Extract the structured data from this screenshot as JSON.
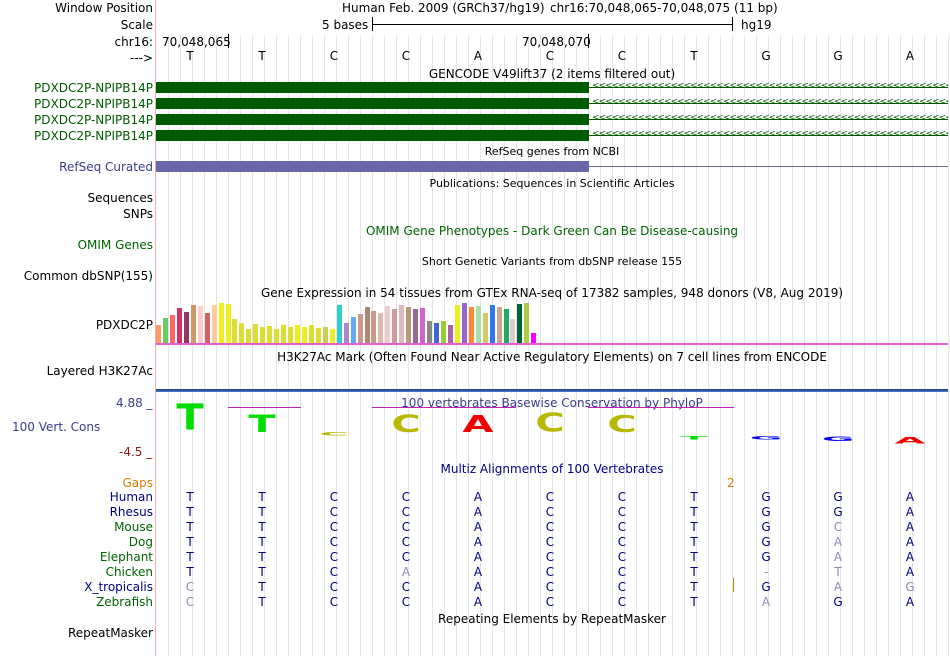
{
  "header": {
    "window_position_label": "Window Position",
    "scale_label": "Scale",
    "chrom_label": "chr16:",
    "strand_label": "--->",
    "assembly_text": "Human Feb. 2009 (GRCh37/hg19)",
    "position_text": "chr16:70,048,065-70,048,075 (11 bp)",
    "scale_text": "5 bases",
    "db_text": "hg19",
    "coord_left": "70,048,065",
    "coord_mid": "70,048,070"
  },
  "reference_bases": [
    "T",
    "T",
    "C",
    "C",
    "A",
    "C",
    "C",
    "T",
    "G",
    "G",
    "A"
  ],
  "tracks": {
    "gencode": {
      "title": "GENCODE V49lift37 (2 items filtered out)",
      "items": [
        "PDXDC2P-NPIPB14P",
        "PDXDC2P-NPIPB14P",
        "PDXDC2P-NPIPB14P",
        "PDXDC2P-NPIPB14P"
      ],
      "color": "#005a00"
    },
    "refseq": {
      "title": "RefSeq genes from NCBI",
      "label": "RefSeq Curated",
      "color": "#6868a8"
    },
    "publications": {
      "title": "Publications: Sequences in Scientific Articles",
      "label1": "Sequences",
      "label2": "SNPs"
    },
    "omim": {
      "title": "OMIM Gene Phenotypes - Dark Green Can Be Disease-causing",
      "label": "OMIM Genes",
      "color": "#006400"
    },
    "dbsnp": {
      "title": "Short Genetic Variants from dbSNP release 155",
      "label": "Common dbSNP(155)"
    },
    "gtex": {
      "title": "Gene Expression in 54 tissues from GTEx RNA-seq of 17382 samples, 948 donors (V8, Aug 2019)",
      "label": "PDXDC2P",
      "values": [
        0.45,
        0.62,
        0.7,
        0.88,
        0.78,
        0.95,
        0.92,
        0.75,
        0.95,
        1.0,
        0.98,
        0.6,
        0.5,
        0.35,
        0.48,
        0.4,
        0.42,
        0.35,
        0.45,
        0.4,
        0.45,
        0.4,
        0.45,
        0.38,
        0.4,
        0.35,
        0.95,
        0.5,
        0.65,
        0.72,
        0.9,
        0.8,
        0.75,
        0.92,
        0.85,
        0.95,
        0.9,
        0.85,
        0.88,
        0.55,
        0.5,
        0.55,
        0.45,
        0.95,
        1.0,
        0.9,
        0.92,
        0.75,
        0.95,
        0.9,
        0.85,
        0.6,
        0.98,
        1.0,
        0.25
      ],
      "colors": [
        "#ff9966",
        "#66cc66",
        "#ff6666",
        "#cc3366",
        "#993366",
        "#cc9966",
        "#ffcccc",
        "#cc6666",
        "#ffcc99",
        "#eeee22",
        "#eeee22",
        "#dddd33",
        "#dddd33",
        "#dddd33",
        "#dddd33",
        "#dddd33",
        "#dddd33",
        "#dddd33",
        "#dddd33",
        "#dddd33",
        "#eeee22",
        "#eeee22",
        "#dddd33",
        "#dddd33",
        "#cccc55",
        "#eeee22",
        "#33cccc",
        "#aa88cc",
        "#66aaee",
        "#cc9988",
        "#aa8877",
        "#cc9988",
        "#ddbbaa",
        "#eecccc",
        "#cc9999",
        "#ddbbbb",
        "#bb9977",
        "#996699",
        "#cc66cc",
        "#888888",
        "#4466cc",
        "#99cc33",
        "#aa66aa",
        "#eeee22",
        "#9966cc",
        "#ff8833",
        "#aaddaa",
        "#cccc66",
        "#3377ee",
        "#ccaa88",
        "#22aa66",
        "#ddcccc",
        "#006633",
        "#aacc44",
        "#ff00ff"
      ]
    },
    "h3k27ac": {
      "title": "H3K27Ac Mark (Often Found Near Active Regulatory Elements) on 7 cell lines from ENCODE",
      "label": "Layered H3K27Ac"
    },
    "phylop": {
      "title": "100 vertebrates Basewise Conservation by PhyloP",
      "label": "100 Vert. Cons",
      "max_label": "4.88 _",
      "min_label": "-4.5 _",
      "scores": [
        3.6,
        2.4,
        0.4,
        2.4,
        2.3,
        2.6,
        2.3,
        -0.4,
        -0.15,
        -0.6,
        -0.9
      ]
    },
    "multiz": {
      "title": "Multiz Alignments of 100 Vertebrates",
      "gaps_label": "Gaps",
      "gap_value": "2",
      "species": [
        {
          "name": "Human",
          "color": "#000080",
          "bases": [
            "T",
            "T",
            "C",
            "C",
            "A",
            "C",
            "C",
            "T",
            "G",
            "G",
            "A"
          ],
          "dim": [
            false,
            false,
            false,
            false,
            false,
            false,
            false,
            false,
            false,
            false,
            false
          ]
        },
        {
          "name": "Rhesus",
          "color": "#000080",
          "bases": [
            "T",
            "T",
            "C",
            "C",
            "A",
            "C",
            "C",
            "T",
            "G",
            "G",
            "A"
          ],
          "dim": [
            false,
            false,
            false,
            false,
            false,
            false,
            false,
            false,
            false,
            false,
            false
          ]
        },
        {
          "name": "Mouse",
          "color": "#006400",
          "bases": [
            "T",
            "T",
            "C",
            "C",
            "A",
            "C",
            "C",
            "T",
            "G",
            "C",
            "A"
          ],
          "dim": [
            false,
            false,
            false,
            false,
            false,
            false,
            false,
            false,
            false,
            true,
            false
          ]
        },
        {
          "name": "Dog",
          "color": "#006400",
          "bases": [
            "T",
            "T",
            "C",
            "C",
            "A",
            "C",
            "C",
            "T",
            "G",
            "A",
            "A"
          ],
          "dim": [
            false,
            false,
            false,
            false,
            false,
            false,
            false,
            false,
            false,
            true,
            false
          ]
        },
        {
          "name": "Elephant",
          "color": "#006400",
          "bases": [
            "T",
            "T",
            "C",
            "C",
            "A",
            "C",
            "C",
            "T",
            "G",
            "A",
            "A"
          ],
          "dim": [
            false,
            false,
            false,
            false,
            false,
            false,
            false,
            false,
            false,
            true,
            false
          ]
        },
        {
          "name": "Chicken",
          "color": "#006400",
          "bases": [
            "T",
            "T",
            "C",
            "A",
            "A",
            "C",
            "C",
            "T",
            "-",
            "T",
            "A"
          ],
          "dim": [
            false,
            false,
            false,
            true,
            false,
            false,
            false,
            false,
            true,
            true,
            false
          ]
        },
        {
          "name": "X_tropicalis",
          "color": "#000080",
          "bases": [
            "C",
            "T",
            "C",
            "C",
            "A",
            "C",
            "C",
            "T",
            "G",
            "A",
            "G"
          ],
          "dim": [
            true,
            false,
            false,
            false,
            false,
            false,
            false,
            false,
            false,
            true,
            true
          ]
        },
        {
          "name": "Zebrafish",
          "color": "#006400",
          "bases": [
            "C",
            "T",
            "C",
            "C",
            "A",
            "C",
            "C",
            "T",
            "A",
            "G",
            "A"
          ],
          "dim": [
            true,
            false,
            false,
            false,
            false,
            false,
            false,
            false,
            true,
            false,
            false
          ]
        }
      ]
    },
    "repeatmasker": {
      "title": "Repeating Elements by RepeatMasker",
      "label": "RepeatMasker"
    }
  }
}
